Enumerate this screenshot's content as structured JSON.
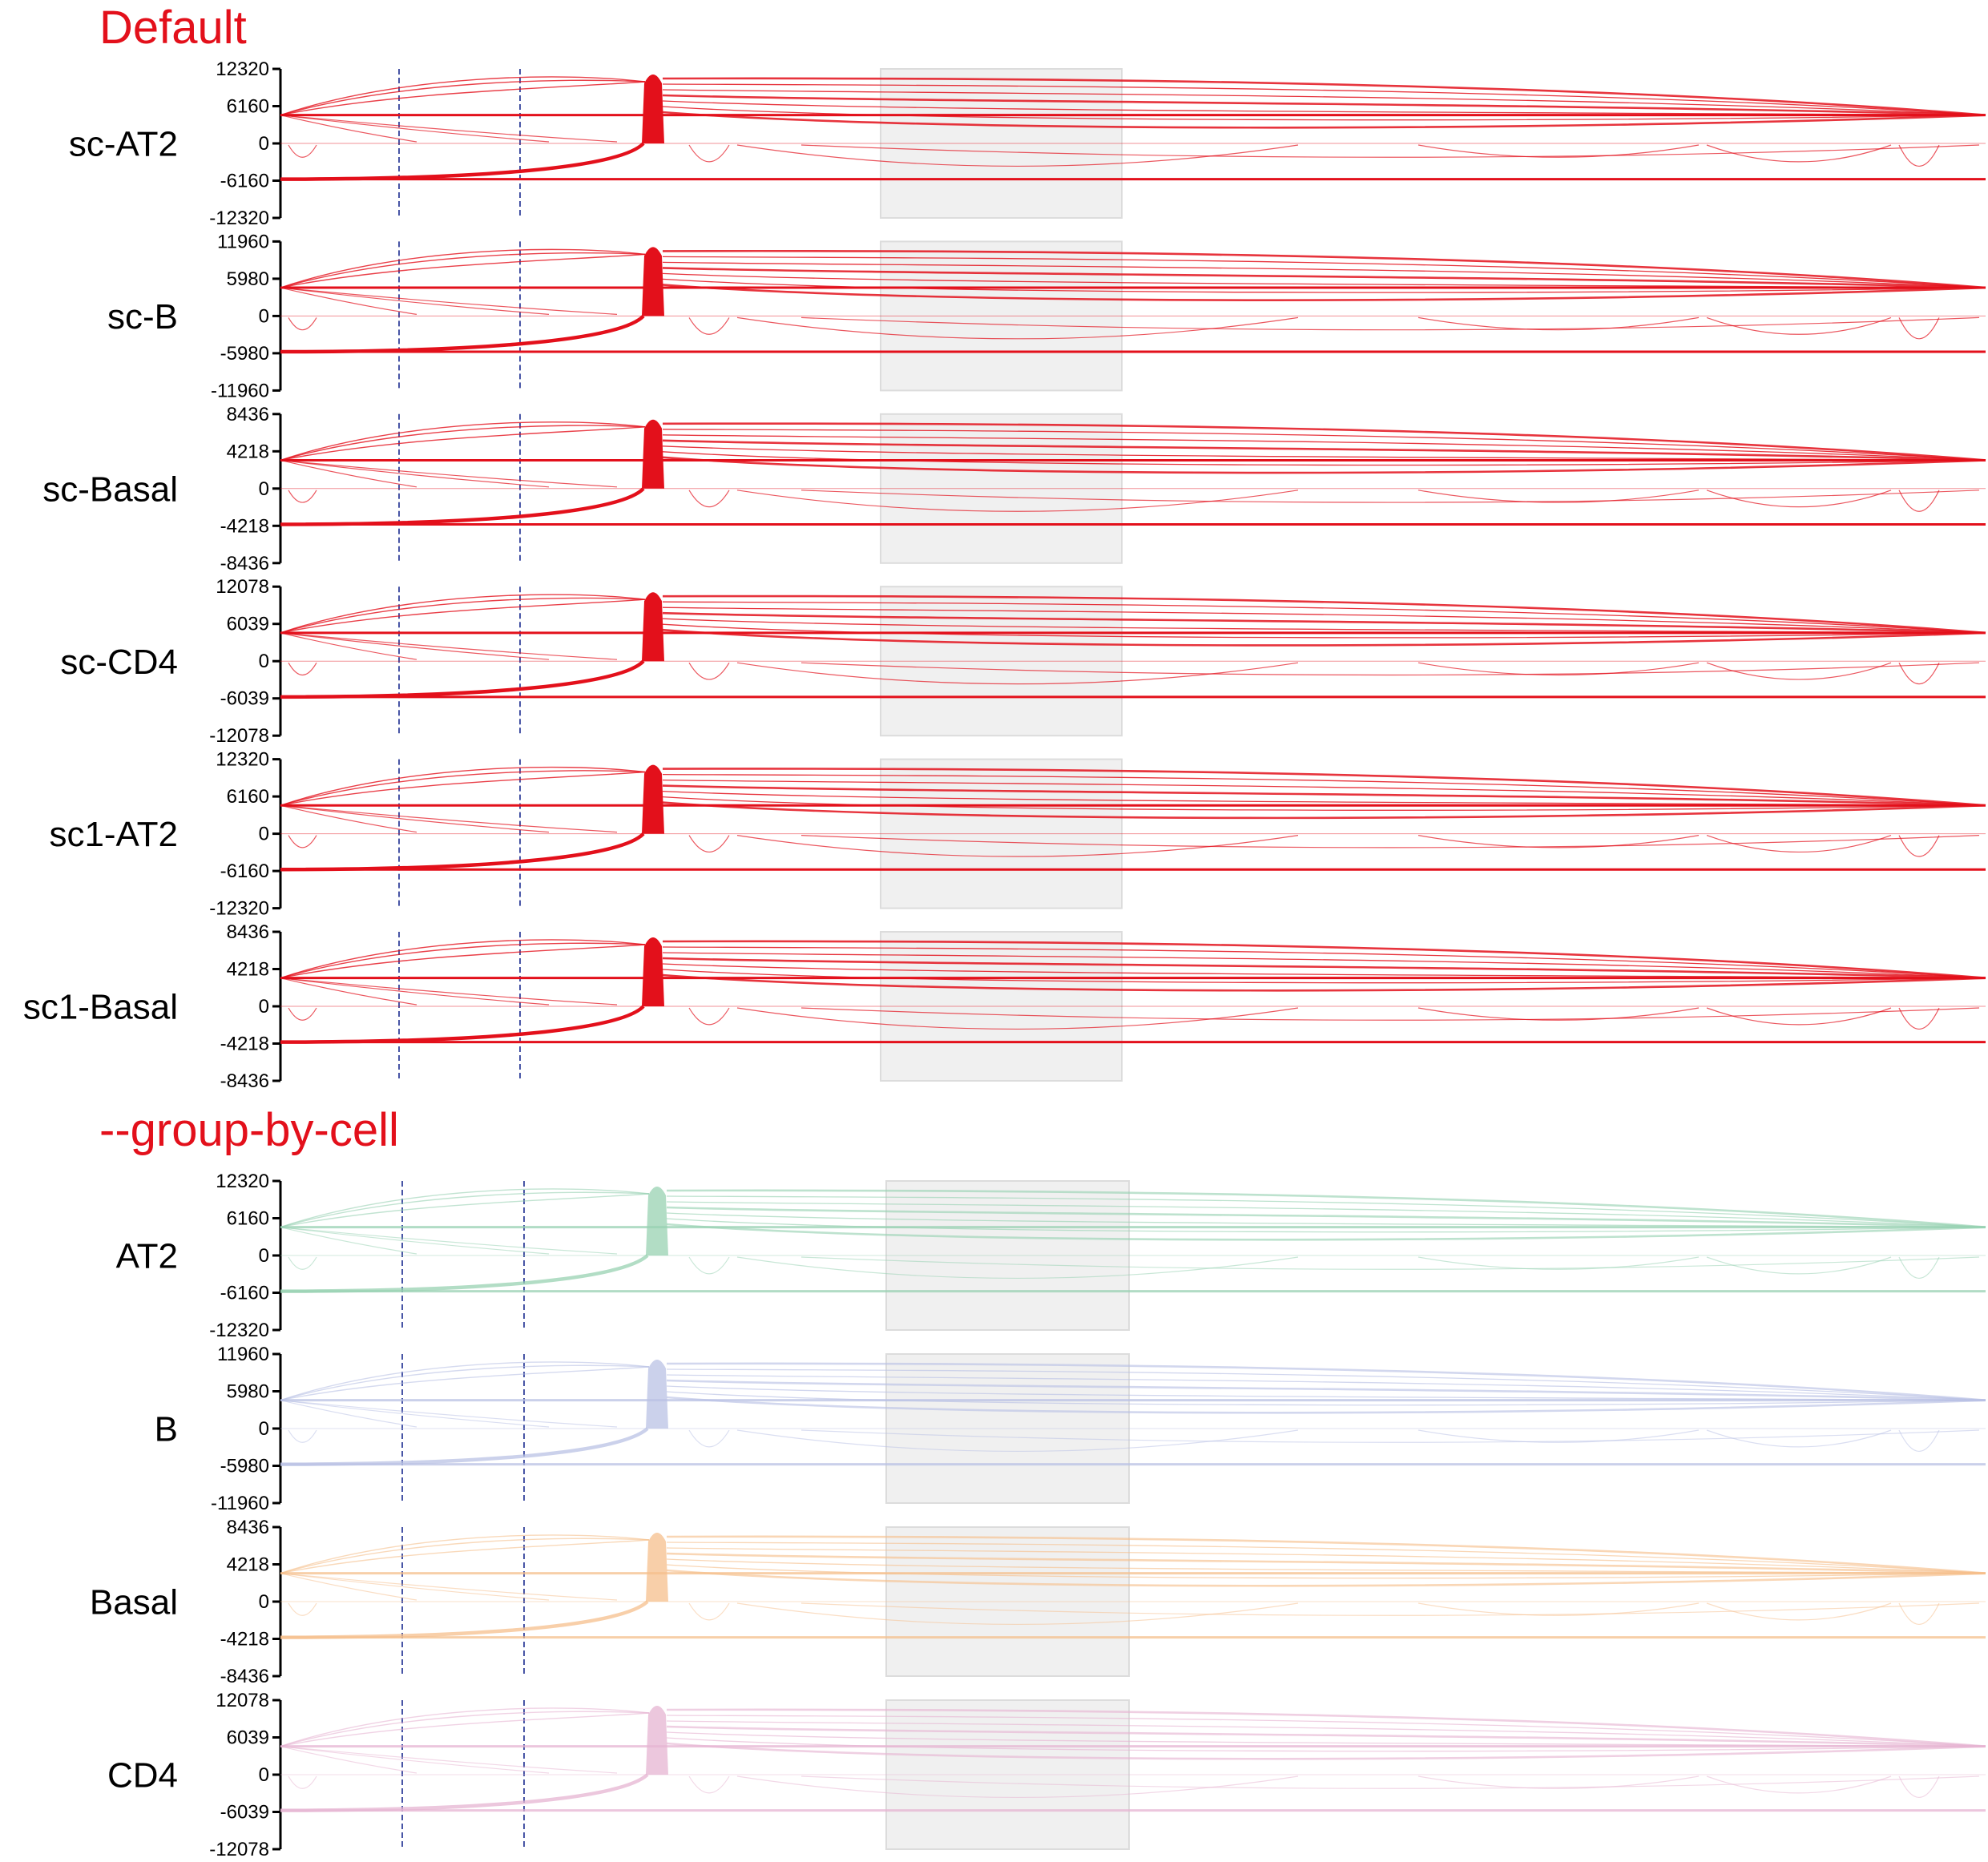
{
  "sections": [
    {
      "title": "Default",
      "title_color": "#e3101b",
      "tracks": [
        {
          "label": "sc-AT2",
          "color": "#e3101b",
          "max": 12320,
          "ticks": [
            "12320",
            "6160",
            "0",
            "-6160",
            "-12320"
          ]
        },
        {
          "label": "sc-B",
          "color": "#e3101b",
          "max": 11960,
          "ticks": [
            "11960",
            "5980",
            "0",
            "-5980",
            "-11960"
          ]
        },
        {
          "label": "sc-Basal",
          "color": "#e3101b",
          "max": 8436,
          "ticks": [
            "8436",
            "4218",
            "0",
            "-4218",
            "-8436"
          ]
        },
        {
          "label": "sc-CD4",
          "color": "#e3101b",
          "max": 12078,
          "ticks": [
            "12078",
            "6039",
            "0",
            "-6039",
            "-12078"
          ]
        },
        {
          "label": "sc1-AT2",
          "color": "#e3101b",
          "max": 12320,
          "ticks": [
            "12320",
            "6160",
            "0",
            "-6160",
            "-12320"
          ]
        },
        {
          "label": "sc1-Basal",
          "color": "#e3101b",
          "max": 8436,
          "ticks": [
            "8436",
            "4218",
            "0",
            "-4218",
            "-8436"
          ]
        }
      ]
    },
    {
      "title": "--group-by-cell",
      "title_color": "#e3101b",
      "tracks": [
        {
          "label": "AT2",
          "color": "#98d1b2",
          "max": 12320,
          "ticks": [
            "12320",
            "6160",
            "0",
            "-6160",
            "-12320"
          ]
        },
        {
          "label": "B",
          "color": "#b9c1e4",
          "max": 11960,
          "ticks": [
            "11960",
            "5980",
            "0",
            "-5980",
            "-11960"
          ]
        },
        {
          "label": "Basal",
          "color": "#f5bf8c",
          "max": 8436,
          "ticks": [
            "8436",
            "4218",
            "0",
            "-4218",
            "-8436"
          ]
        },
        {
          "label": "CD4",
          "color": "#e6b4d2",
          "max": 12078,
          "ticks": [
            "12078",
            "6039",
            "0",
            "-6039",
            "-12078"
          ]
        }
      ]
    }
  ],
  "chart_data": {
    "type": "sashimi",
    "title": "Default / --group-by-cell",
    "y_axis_note": "symmetric axis: max, max/2, 0, -max/2, -max per track",
    "highlight_region_color": "#f0f0f0",
    "marker_line_color": "#1a2b8f",
    "series": [
      {
        "name": "sc-AT2",
        "ylim": [
          -12320,
          12320
        ]
      },
      {
        "name": "sc-B",
        "ylim": [
          -11960,
          11960
        ]
      },
      {
        "name": "sc-Basal",
        "ylim": [
          -8436,
          8436
        ]
      },
      {
        "name": "sc-CD4",
        "ylim": [
          -12078,
          12078
        ]
      },
      {
        "name": "sc1-AT2",
        "ylim": [
          -12320,
          12320
        ]
      },
      {
        "name": "sc1-Basal",
        "ylim": [
          -8436,
          8436
        ]
      },
      {
        "name": "AT2",
        "ylim": [
          -12320,
          12320
        ]
      },
      {
        "name": "B",
        "ylim": [
          -11960,
          11960
        ]
      },
      {
        "name": "Basal",
        "ylim": [
          -8436,
          8436
        ]
      },
      {
        "name": "CD4",
        "ylim": [
          -12078,
          12078
        ]
      }
    ]
  }
}
